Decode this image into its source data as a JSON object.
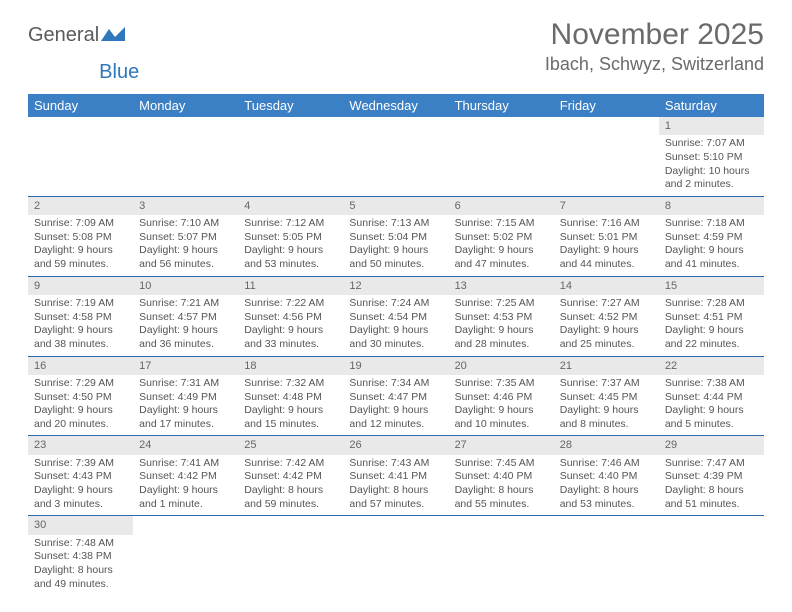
{
  "logo": {
    "part1": "General",
    "part2": "Blue"
  },
  "header": {
    "month": "November 2025",
    "location": "Ibach, Schwyz, Switzerland"
  },
  "colors": {
    "header_bg": "#3b7fc4",
    "header_text": "#ffffff",
    "daynum_bg": "#e9e9e9",
    "row_border": "#2f6aa8",
    "title_text": "#6a6a6a",
    "body_text": "#555555",
    "logo_gray": "#5a5a5a",
    "logo_blue": "#2f77bb"
  },
  "columns": [
    "Sunday",
    "Monday",
    "Tuesday",
    "Wednesday",
    "Thursday",
    "Friday",
    "Saturday"
  ],
  "weeks": [
    [
      null,
      null,
      null,
      null,
      null,
      null,
      {
        "n": "1",
        "sr": "7:07 AM",
        "ss": "5:10 PM",
        "dl": "10 hours and 2 minutes."
      }
    ],
    [
      {
        "n": "2",
        "sr": "7:09 AM",
        "ss": "5:08 PM",
        "dl": "9 hours and 59 minutes."
      },
      {
        "n": "3",
        "sr": "7:10 AM",
        "ss": "5:07 PM",
        "dl": "9 hours and 56 minutes."
      },
      {
        "n": "4",
        "sr": "7:12 AM",
        "ss": "5:05 PM",
        "dl": "9 hours and 53 minutes."
      },
      {
        "n": "5",
        "sr": "7:13 AM",
        "ss": "5:04 PM",
        "dl": "9 hours and 50 minutes."
      },
      {
        "n": "6",
        "sr": "7:15 AM",
        "ss": "5:02 PM",
        "dl": "9 hours and 47 minutes."
      },
      {
        "n": "7",
        "sr": "7:16 AM",
        "ss": "5:01 PM",
        "dl": "9 hours and 44 minutes."
      },
      {
        "n": "8",
        "sr": "7:18 AM",
        "ss": "4:59 PM",
        "dl": "9 hours and 41 minutes."
      }
    ],
    [
      {
        "n": "9",
        "sr": "7:19 AM",
        "ss": "4:58 PM",
        "dl": "9 hours and 38 minutes."
      },
      {
        "n": "10",
        "sr": "7:21 AM",
        "ss": "4:57 PM",
        "dl": "9 hours and 36 minutes."
      },
      {
        "n": "11",
        "sr": "7:22 AM",
        "ss": "4:56 PM",
        "dl": "9 hours and 33 minutes."
      },
      {
        "n": "12",
        "sr": "7:24 AM",
        "ss": "4:54 PM",
        "dl": "9 hours and 30 minutes."
      },
      {
        "n": "13",
        "sr": "7:25 AM",
        "ss": "4:53 PM",
        "dl": "9 hours and 28 minutes."
      },
      {
        "n": "14",
        "sr": "7:27 AM",
        "ss": "4:52 PM",
        "dl": "9 hours and 25 minutes."
      },
      {
        "n": "15",
        "sr": "7:28 AM",
        "ss": "4:51 PM",
        "dl": "9 hours and 22 minutes."
      }
    ],
    [
      {
        "n": "16",
        "sr": "7:29 AM",
        "ss": "4:50 PM",
        "dl": "9 hours and 20 minutes."
      },
      {
        "n": "17",
        "sr": "7:31 AM",
        "ss": "4:49 PM",
        "dl": "9 hours and 17 minutes."
      },
      {
        "n": "18",
        "sr": "7:32 AM",
        "ss": "4:48 PM",
        "dl": "9 hours and 15 minutes."
      },
      {
        "n": "19",
        "sr": "7:34 AM",
        "ss": "4:47 PM",
        "dl": "9 hours and 12 minutes."
      },
      {
        "n": "20",
        "sr": "7:35 AM",
        "ss": "4:46 PM",
        "dl": "9 hours and 10 minutes."
      },
      {
        "n": "21",
        "sr": "7:37 AM",
        "ss": "4:45 PM",
        "dl": "9 hours and 8 minutes."
      },
      {
        "n": "22",
        "sr": "7:38 AM",
        "ss": "4:44 PM",
        "dl": "9 hours and 5 minutes."
      }
    ],
    [
      {
        "n": "23",
        "sr": "7:39 AM",
        "ss": "4:43 PM",
        "dl": "9 hours and 3 minutes."
      },
      {
        "n": "24",
        "sr": "7:41 AM",
        "ss": "4:42 PM",
        "dl": "9 hours and 1 minute."
      },
      {
        "n": "25",
        "sr": "7:42 AM",
        "ss": "4:42 PM",
        "dl": "8 hours and 59 minutes."
      },
      {
        "n": "26",
        "sr": "7:43 AM",
        "ss": "4:41 PM",
        "dl": "8 hours and 57 minutes."
      },
      {
        "n": "27",
        "sr": "7:45 AM",
        "ss": "4:40 PM",
        "dl": "8 hours and 55 minutes."
      },
      {
        "n": "28",
        "sr": "7:46 AM",
        "ss": "4:40 PM",
        "dl": "8 hours and 53 minutes."
      },
      {
        "n": "29",
        "sr": "7:47 AM",
        "ss": "4:39 PM",
        "dl": "8 hours and 51 minutes."
      }
    ],
    [
      {
        "n": "30",
        "sr": "7:48 AM",
        "ss": "4:38 PM",
        "dl": "8 hours and 49 minutes."
      },
      null,
      null,
      null,
      null,
      null,
      null
    ]
  ],
  "labels": {
    "sunrise": "Sunrise: ",
    "sunset": "Sunset: ",
    "daylight": "Daylight: "
  }
}
